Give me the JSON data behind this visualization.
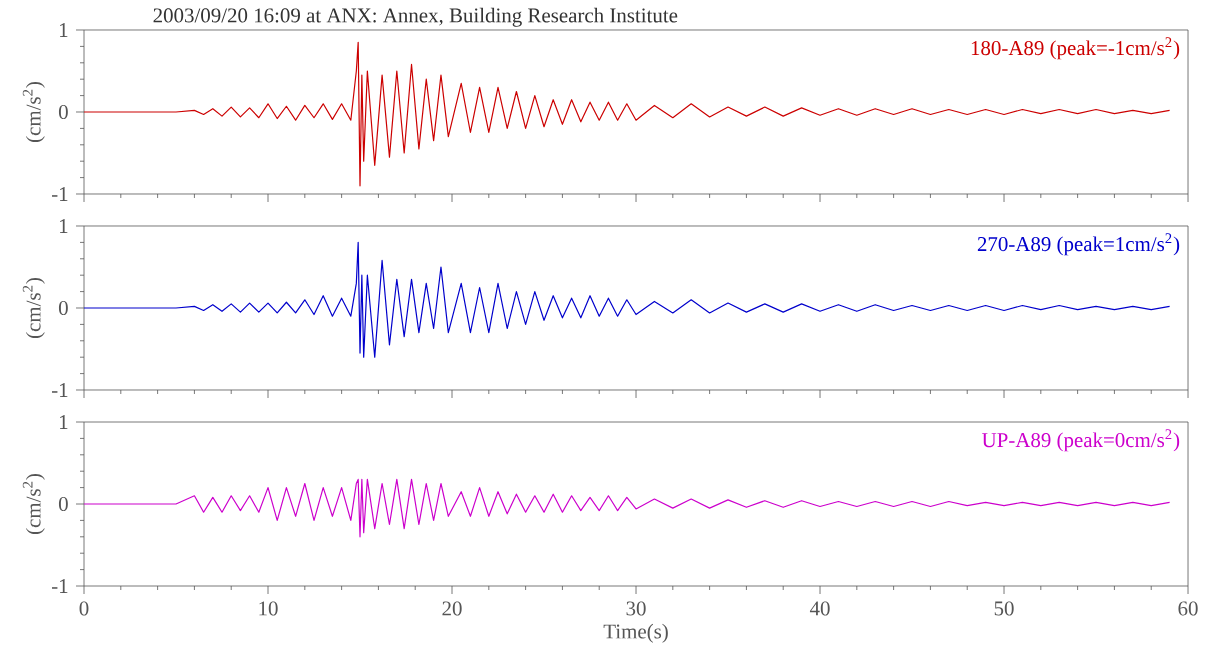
{
  "chart_data": [
    {
      "type": "line",
      "title": "2003/09/20 16:09 at ANX: Annex, Building Research Institute",
      "ylabel": "(cm/s$^{2}$)",
      "xlim": [
        0,
        60
      ],
      "ylim": [
        -1,
        1
      ],
      "xticks": [
        0,
        10,
        20,
        30,
        40,
        50,
        60
      ],
      "yticks": [
        -1,
        0,
        1
      ],
      "tick_labels": "y",
      "x": [
        0,
        5,
        6,
        6.5,
        7,
        7.5,
        8,
        8.5,
        9,
        9.5,
        10,
        10.5,
        11,
        11.5,
        12,
        12.5,
        13,
        13.5,
        14,
        14.5,
        14.8,
        14.9,
        15,
        15.1,
        15.2,
        15.4,
        15.8,
        16.2,
        16.6,
        17,
        17.4,
        17.8,
        18.2,
        18.6,
        19,
        19.4,
        19.8,
        20.5,
        21,
        21.5,
        22,
        22.5,
        23,
        23.5,
        24,
        24.5,
        25,
        25.5,
        26,
        26.5,
        27,
        27.5,
        28,
        28.5,
        29,
        29.5,
        30,
        31,
        32,
        33,
        34,
        35,
        36,
        37,
        38,
        39,
        40,
        41,
        42,
        43,
        44,
        45,
        46,
        47,
        48,
        49,
        50,
        51,
        52,
        53,
        54,
        55,
        56,
        57,
        58,
        59
      ],
      "series": [
        {
          "name": "180-A89 (peak=-1cm/s$^{2}$)",
          "color": "#cc0000",
          "values": [
            0,
            0,
            0.02,
            -0.03,
            0.04,
            -0.05,
            0.06,
            -0.06,
            0.05,
            -0.07,
            0.1,
            -0.08,
            0.07,
            -0.1,
            0.08,
            -0.07,
            0.1,
            -0.09,
            0.1,
            -0.1,
            0.5,
            0.85,
            -0.9,
            0.45,
            -0.6,
            0.5,
            -0.65,
            0.45,
            -0.55,
            0.5,
            -0.5,
            0.58,
            -0.45,
            0.4,
            -0.35,
            0.45,
            -0.3,
            0.35,
            -0.25,
            0.3,
            -0.25,
            0.3,
            -0.2,
            0.25,
            -0.2,
            0.2,
            -0.18,
            0.15,
            -0.15,
            0.15,
            -0.12,
            0.12,
            -0.1,
            0.12,
            -0.1,
            0.1,
            -0.1,
            0.08,
            -0.07,
            0.1,
            -0.06,
            0.06,
            -0.05,
            0.06,
            -0.05,
            0.05,
            -0.04,
            0.04,
            -0.04,
            0.04,
            -0.03,
            0.04,
            -0.03,
            0.03,
            -0.03,
            0.03,
            -0.03,
            0.03,
            -0.02,
            0.03,
            -0.02,
            0.03,
            -0.02,
            0.02,
            -0.02,
            0.02
          ]
        }
      ]
    },
    {
      "type": "line",
      "ylabel": "(cm/s$^{2}$)",
      "xlim": [
        0,
        60
      ],
      "ylim": [
        -1,
        1
      ],
      "xticks": [
        0,
        10,
        20,
        30,
        40,
        50,
        60
      ],
      "yticks": [
        -1,
        0,
        1
      ],
      "tick_labels": "y",
      "x": [
        0,
        5,
        6,
        6.5,
        7,
        7.5,
        8,
        8.5,
        9,
        9.5,
        10,
        10.5,
        11,
        11.5,
        12,
        12.5,
        13,
        13.5,
        14,
        14.5,
        14.8,
        14.9,
        15,
        15.1,
        15.2,
        15.4,
        15.8,
        16.2,
        16.6,
        17,
        17.4,
        17.8,
        18.2,
        18.6,
        19,
        19.4,
        19.8,
        20.5,
        21,
        21.5,
        22,
        22.5,
        23,
        23.5,
        24,
        24.5,
        25,
        25.5,
        26,
        26.5,
        27,
        27.5,
        28,
        28.5,
        29,
        29.5,
        30,
        31,
        32,
        33,
        34,
        35,
        36,
        37,
        38,
        39,
        40,
        41,
        42,
        43,
        44,
        45,
        46,
        47,
        48,
        49,
        50,
        51,
        52,
        53,
        54,
        55,
        56,
        57,
        58,
        59
      ],
      "series": [
        {
          "name": "270-A89 (peak=1cm/s$^{2}$)",
          "color": "#0000cc",
          "values": [
            0,
            0,
            0.02,
            -0.03,
            0.04,
            -0.04,
            0.05,
            -0.05,
            0.06,
            -0.05,
            0.06,
            -0.06,
            0.07,
            -0.06,
            0.1,
            -0.08,
            0.15,
            -0.1,
            0.12,
            -0.1,
            0.3,
            0.8,
            -0.55,
            0.4,
            -0.6,
            0.4,
            -0.6,
            0.58,
            -0.45,
            0.35,
            -0.35,
            0.35,
            -0.3,
            0.3,
            -0.25,
            0.5,
            -0.3,
            0.3,
            -0.3,
            0.25,
            -0.3,
            0.3,
            -0.25,
            0.2,
            -0.2,
            0.2,
            -0.15,
            0.15,
            -0.12,
            0.12,
            -0.12,
            0.15,
            -0.1,
            0.12,
            -0.1,
            0.1,
            -0.08,
            0.08,
            -0.06,
            0.1,
            -0.06,
            0.06,
            -0.05,
            0.05,
            -0.05,
            0.05,
            -0.04,
            0.04,
            -0.04,
            0.04,
            -0.03,
            0.03,
            -0.03,
            0.03,
            -0.03,
            0.03,
            -0.03,
            0.03,
            -0.02,
            0.03,
            -0.02,
            0.02,
            -0.02,
            0.02,
            -0.02,
            0.02
          ]
        }
      ]
    },
    {
      "type": "line",
      "xlabel": "Time(s)",
      "ylabel": "(cm/s$^{2}$)",
      "xlim": [
        0,
        60
      ],
      "ylim": [
        -1,
        1
      ],
      "xticks": [
        0,
        10,
        20,
        30,
        40,
        50,
        60
      ],
      "yticks": [
        -1,
        0,
        1
      ],
      "x": [
        0,
        5,
        6,
        6.5,
        7,
        7.5,
        8,
        8.5,
        9,
        9.5,
        10,
        10.5,
        11,
        11.5,
        12,
        12.5,
        13,
        13.5,
        14,
        14.5,
        14.8,
        14.9,
        15,
        15.1,
        15.2,
        15.4,
        15.8,
        16.2,
        16.6,
        17,
        17.4,
        17.8,
        18.2,
        18.6,
        19,
        19.4,
        19.8,
        20.5,
        21,
        21.5,
        22,
        22.5,
        23,
        23.5,
        24,
        24.5,
        25,
        25.5,
        26,
        26.5,
        27,
        27.5,
        28,
        28.5,
        29,
        29.5,
        30,
        31,
        32,
        33,
        34,
        35,
        36,
        37,
        38,
        39,
        40,
        41,
        42,
        43,
        44,
        45,
        46,
        47,
        48,
        49,
        50,
        51,
        52,
        53,
        54,
        55,
        56,
        57,
        58,
        59
      ],
      "series": [
        {
          "name": "UP-A89 (peak=0cm/s$^{2}$)",
          "color": "#cc00cc",
          "values": [
            0,
            0,
            0.1,
            -0.1,
            0.08,
            -0.1,
            0.1,
            -0.08,
            0.1,
            -0.1,
            0.2,
            -0.2,
            0.2,
            -0.15,
            0.25,
            -0.2,
            0.2,
            -0.15,
            0.2,
            -0.2,
            0.25,
            0.3,
            -0.4,
            0.3,
            -0.35,
            0.3,
            -0.3,
            0.25,
            -0.25,
            0.3,
            -0.3,
            0.3,
            -0.25,
            0.25,
            -0.2,
            0.25,
            -0.15,
            0.15,
            -0.15,
            0.2,
            -0.15,
            0.15,
            -0.12,
            0.12,
            -0.1,
            0.1,
            -0.1,
            0.12,
            -0.1,
            0.1,
            -0.08,
            0.08,
            -0.08,
            0.1,
            -0.08,
            0.08,
            -0.06,
            0.06,
            -0.05,
            0.06,
            -0.05,
            0.05,
            -0.04,
            0.04,
            -0.04,
            0.04,
            -0.03,
            0.03,
            -0.03,
            0.03,
            -0.03,
            0.03,
            -0.03,
            0.03,
            -0.02,
            0.02,
            -0.02,
            0.02,
            -0.02,
            0.02,
            -0.02,
            0.02,
            -0.02,
            0.02,
            -0.02,
            0.02
          ]
        }
      ]
    }
  ]
}
